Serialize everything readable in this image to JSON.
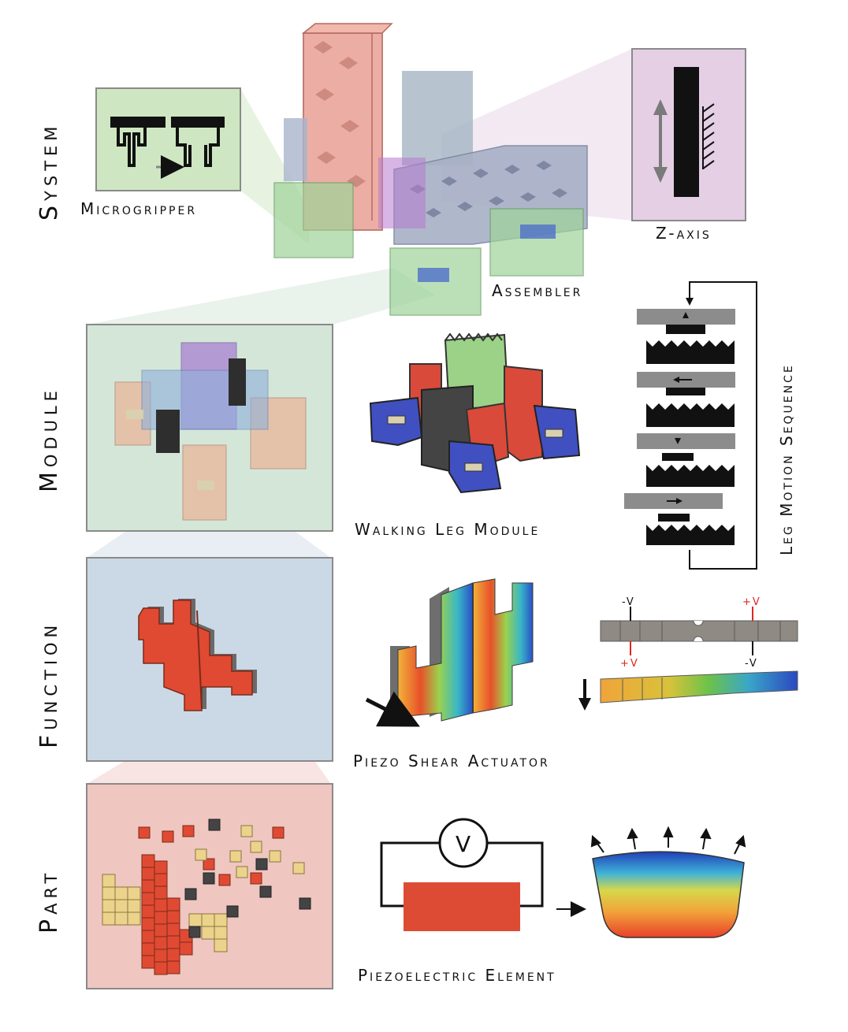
{
  "rows": {
    "system": "System",
    "module": "Module",
    "function": "Function",
    "part": "Part"
  },
  "captions": {
    "microgripper": "Microgripper",
    "z_axis": "Z-axis",
    "assembler": "Assembler",
    "walking_leg_module": "Walking Leg Module",
    "leg_motion_sequence": "Leg Motion Sequence",
    "piezo_shear_actuator": "Piezo Shear Actuator",
    "piezoelectric_element": "Piezoelectric Element"
  },
  "voltages": {
    "top_left": "-V",
    "top_right": "+V",
    "bottom_left": "+V",
    "bottom_right": "-V"
  },
  "voltmeter": "V",
  "colors": {
    "system_panel": "#cfe6c2",
    "zaxis_panel": "#e4cfe4",
    "module_panel": "#d4e6d8",
    "function_panel": "#cbd9e6",
    "part_panel": "#efc6c0",
    "piezo_red": "#de4b34",
    "part_yellow": "#ecd38b",
    "leg_blue": "#4050c0",
    "leg_green": "#9bd287"
  }
}
